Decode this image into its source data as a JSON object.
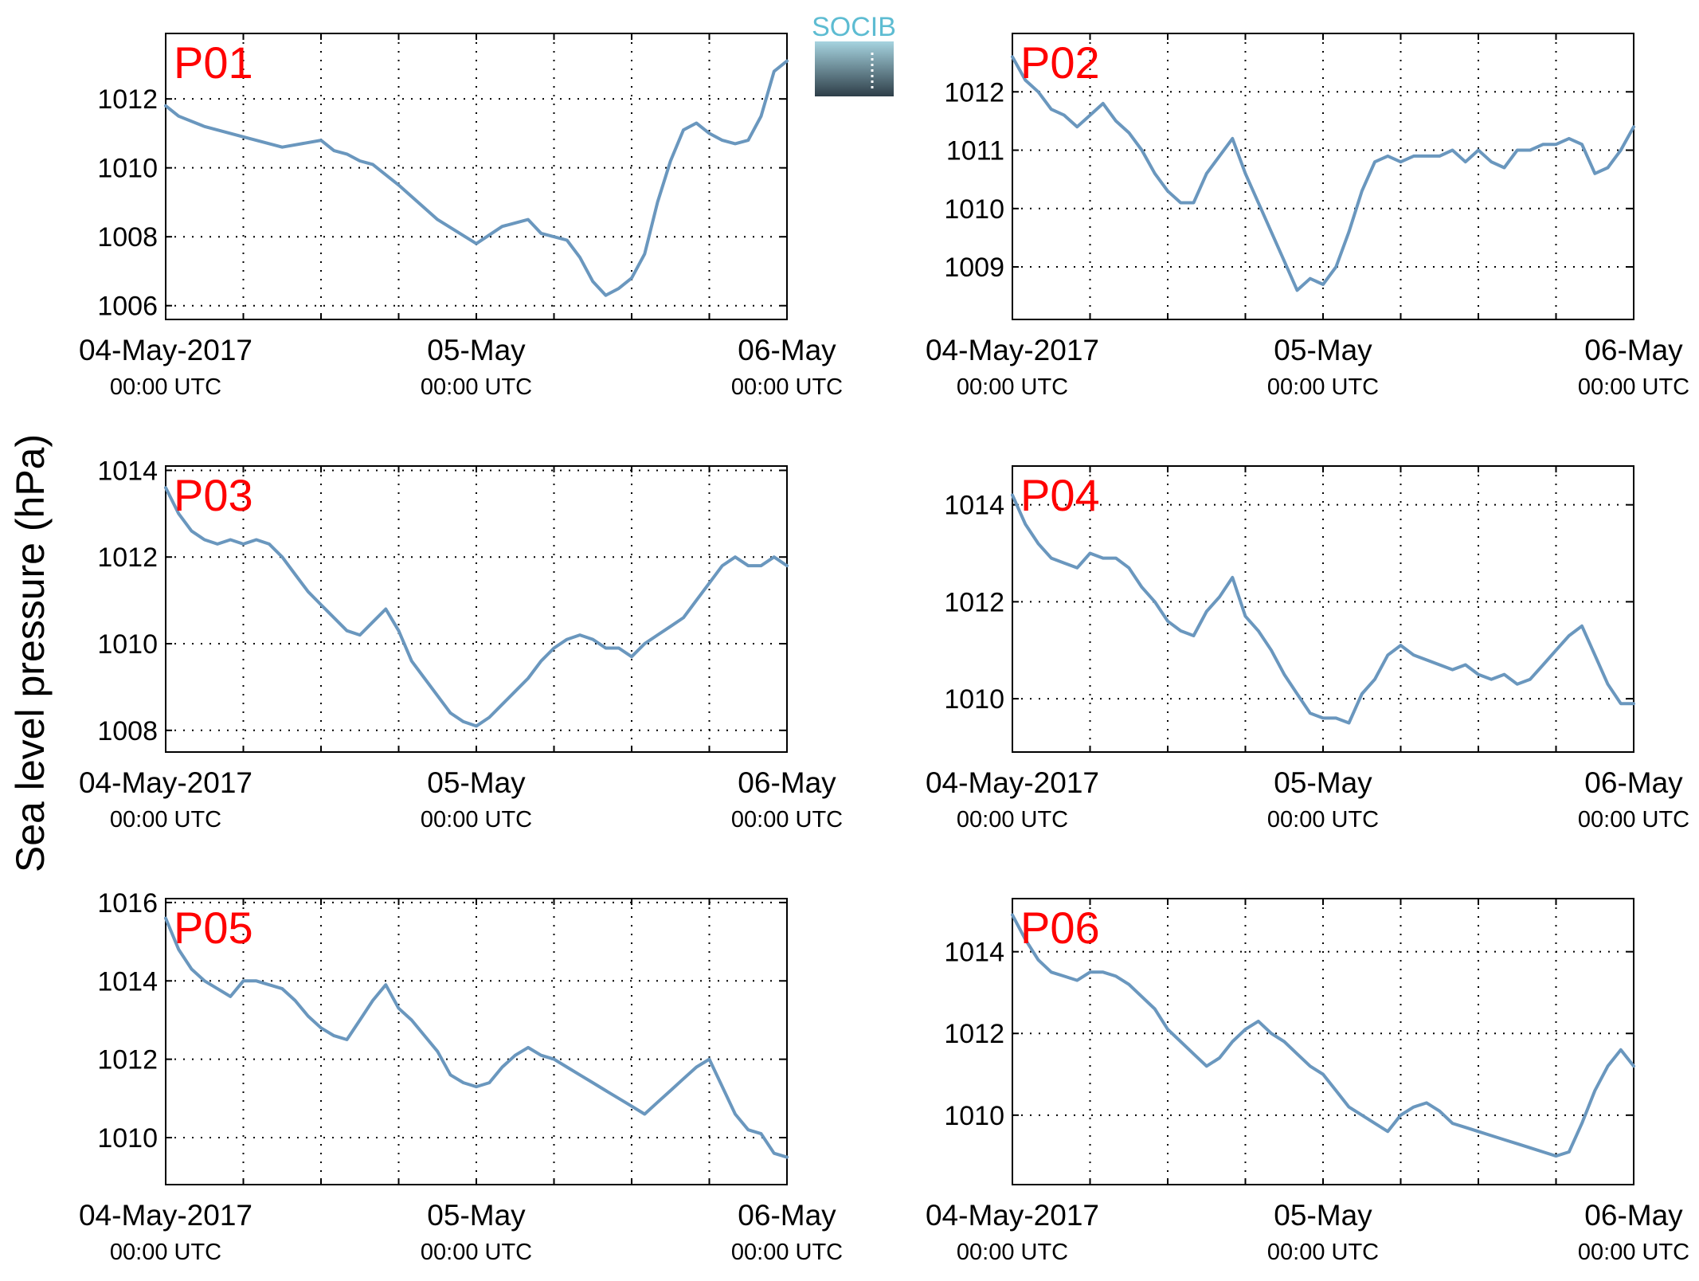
{
  "figure": {
    "ylabel": "Sea level pressure (hPa)",
    "logo_text": "SOCIB",
    "colors": {
      "line": "#6a97be",
      "panel_label": "#ff0000",
      "axis": "#000000",
      "grid": "#000000",
      "logo_top": "#a6d3df",
      "logo_bottom": "#2e3e48",
      "logo_text": "#5dbcd2"
    }
  },
  "chart_data": [
    {
      "type": "line",
      "title": "P01",
      "x_range": [
        "2017-05-04 00:00 UTC",
        "2017-05-06 00:00 UTC"
      ],
      "x_tick_labels": [
        {
          "date": "04-May-2017",
          "time": "00:00 UTC"
        },
        {
          "date": "05-May",
          "time": "00:00 UTC"
        },
        {
          "date": "06-May",
          "time": "00:00 UTC"
        }
      ],
      "grid": true,
      "ylim": [
        1005.6,
        1013.9
      ],
      "y_ticks": [
        1006,
        1008,
        1010,
        1012
      ],
      "series": [
        {
          "x_hours": [
            0,
            1,
            3,
            6,
            9,
            12,
            13,
            14,
            15,
            16,
            18,
            21,
            24,
            26,
            28,
            29,
            30,
            31,
            32,
            33,
            34,
            35,
            36,
            37,
            38,
            39,
            40,
            41,
            42,
            43,
            44,
            45,
            46,
            47,
            48
          ],
          "values": [
            1011.8,
            1011.5,
            1011.2,
            1010.9,
            1010.6,
            1010.8,
            1010.5,
            1010.4,
            1010.2,
            1010.1,
            1009.5,
            1008.5,
            1007.8,
            1008.3,
            1008.5,
            1008.1,
            1008.0,
            1007.9,
            1007.4,
            1006.7,
            1006.3,
            1006.5,
            1006.8,
            1007.5,
            1009.0,
            1010.2,
            1011.1,
            1011.3,
            1011.0,
            1010.8,
            1010.7,
            1010.8,
            1011.5,
            1012.8,
            1013.1
          ]
        }
      ]
    },
    {
      "type": "line",
      "title": "P02",
      "x_range": [
        "2017-05-04 00:00 UTC",
        "2017-05-06 00:00 UTC"
      ],
      "x_tick_labels": [
        {
          "date": "04-May-2017",
          "time": "00:00 UTC"
        },
        {
          "date": "05-May",
          "time": "00:00 UTC"
        },
        {
          "date": "06-May",
          "time": "00:00 UTC"
        }
      ],
      "grid": true,
      "ylim": [
        1008.1,
        1013.0
      ],
      "y_ticks": [
        1009,
        1010,
        1011,
        1012
      ],
      "series": [
        {
          "x_hours": [
            0,
            1,
            2,
            3,
            4,
            5,
            6,
            7,
            8,
            9,
            10,
            11,
            12,
            13,
            14,
            15,
            16,
            17,
            18,
            19,
            20,
            21,
            22,
            23,
            24,
            25,
            26,
            27,
            28,
            29,
            30,
            31,
            32,
            33,
            34,
            35,
            36,
            37,
            38,
            39,
            40,
            41,
            42,
            43,
            44,
            45,
            46,
            47,
            48
          ],
          "values": [
            1012.6,
            1012.2,
            1012.0,
            1011.7,
            1011.6,
            1011.4,
            1011.6,
            1011.8,
            1011.5,
            1011.3,
            1011.0,
            1010.6,
            1010.3,
            1010.1,
            1010.1,
            1010.6,
            1010.9,
            1011.2,
            1010.6,
            1010.1,
            1009.6,
            1009.1,
            1008.6,
            1008.8,
            1008.7,
            1009.0,
            1009.6,
            1010.3,
            1010.8,
            1010.9,
            1010.8,
            1010.9,
            1010.9,
            1010.9,
            1011.0,
            1010.8,
            1011.0,
            1010.8,
            1010.7,
            1011.0,
            1011.0,
            1011.1,
            1011.1,
            1011.2,
            1011.1,
            1010.6,
            1010.7,
            1011.0,
            1011.4
          ]
        }
      ]
    },
    {
      "type": "line",
      "title": "P03",
      "x_range": [
        "2017-05-04 00:00 UTC",
        "2017-05-06 00:00 UTC"
      ],
      "x_tick_labels": [
        {
          "date": "04-May-2017",
          "time": "00:00 UTC"
        },
        {
          "date": "05-May",
          "time": "00:00 UTC"
        },
        {
          "date": "06-May",
          "time": "00:00 UTC"
        }
      ],
      "grid": true,
      "ylim": [
        1007.5,
        1014.1
      ],
      "y_ticks": [
        1008,
        1010,
        1012,
        1014
      ],
      "series": [
        {
          "x_hours": [
            0,
            1,
            2,
            3,
            4,
            5,
            6,
            7,
            8,
            9,
            10,
            11,
            12,
            13,
            14,
            15,
            16,
            17,
            18,
            19,
            20,
            21,
            22,
            23,
            24,
            25,
            26,
            27,
            28,
            29,
            30,
            31,
            32,
            33,
            34,
            35,
            36,
            37,
            38,
            39,
            40,
            41,
            42,
            43,
            44,
            45,
            46,
            47,
            48
          ],
          "values": [
            1013.6,
            1013.0,
            1012.6,
            1012.4,
            1012.3,
            1012.4,
            1012.3,
            1012.4,
            1012.3,
            1012.0,
            1011.6,
            1011.2,
            1010.9,
            1010.6,
            1010.3,
            1010.2,
            1010.5,
            1010.8,
            1010.3,
            1009.6,
            1009.2,
            1008.8,
            1008.4,
            1008.2,
            1008.1,
            1008.3,
            1008.6,
            1008.9,
            1009.2,
            1009.6,
            1009.9,
            1010.1,
            1010.2,
            1010.1,
            1009.9,
            1009.9,
            1009.7,
            1010.0,
            1010.2,
            1010.4,
            1010.6,
            1011.0,
            1011.4,
            1011.8,
            1012.0,
            1011.8,
            1011.8,
            1012.0,
            1011.8
          ]
        }
      ]
    },
    {
      "type": "line",
      "title": "P04",
      "x_range": [
        "2017-05-04 00:00 UTC",
        "2017-05-06 00:00 UTC"
      ],
      "x_tick_labels": [
        {
          "date": "04-May-2017",
          "time": "00:00 UTC"
        },
        {
          "date": "05-May",
          "time": "00:00 UTC"
        },
        {
          "date": "06-May",
          "time": "00:00 UTC"
        }
      ],
      "grid": true,
      "ylim": [
        1008.9,
        1014.8
      ],
      "y_ticks": [
        1010,
        1012,
        1014
      ],
      "series": [
        {
          "x_hours": [
            0,
            1,
            2,
            3,
            4,
            5,
            6,
            7,
            8,
            9,
            10,
            11,
            12,
            13,
            14,
            15,
            16,
            17,
            18,
            19,
            20,
            21,
            22,
            23,
            24,
            25,
            26,
            27,
            28,
            29,
            30,
            31,
            32,
            33,
            34,
            35,
            36,
            37,
            38,
            39,
            40,
            41,
            42,
            43,
            44,
            45,
            46,
            47,
            48
          ],
          "values": [
            1014.2,
            1013.6,
            1013.2,
            1012.9,
            1012.8,
            1012.7,
            1013.0,
            1012.9,
            1012.9,
            1012.7,
            1012.3,
            1012.0,
            1011.6,
            1011.4,
            1011.3,
            1011.8,
            1012.1,
            1012.5,
            1011.7,
            1011.4,
            1011.0,
            1010.5,
            1010.1,
            1009.7,
            1009.6,
            1009.6,
            1009.5,
            1010.1,
            1010.4,
            1010.9,
            1011.1,
            1010.9,
            1010.8,
            1010.7,
            1010.6,
            1010.7,
            1010.5,
            1010.4,
            1010.5,
            1010.3,
            1010.4,
            1010.7,
            1011.0,
            1011.3,
            1011.5,
            1010.9,
            1010.3,
            1009.9,
            1009.9
          ]
        }
      ]
    },
    {
      "type": "line",
      "title": "P05",
      "x_range": [
        "2017-05-04 00:00 UTC",
        "2017-05-06 00:00 UTC"
      ],
      "x_tick_labels": [
        {
          "date": "04-May-2017",
          "time": "00:00 UTC"
        },
        {
          "date": "05-May",
          "time": "00:00 UTC"
        },
        {
          "date": "06-May",
          "time": "00:00 UTC"
        }
      ],
      "grid": true,
      "ylim": [
        1008.8,
        1016.1
      ],
      "y_ticks": [
        1010,
        1012,
        1014,
        1016
      ],
      "series": [
        {
          "x_hours": [
            0,
            1,
            2,
            3,
            4,
            5,
            6,
            7,
            8,
            9,
            10,
            11,
            12,
            13,
            14,
            15,
            16,
            17,
            18,
            19,
            20,
            21,
            22,
            23,
            24,
            25,
            26,
            27,
            28,
            29,
            30,
            31,
            32,
            33,
            34,
            35,
            36,
            37,
            38,
            39,
            40,
            41,
            42,
            43,
            44,
            45,
            46,
            47,
            48
          ],
          "values": [
            1015.6,
            1014.8,
            1014.3,
            1014.0,
            1013.8,
            1013.6,
            1014.0,
            1014.0,
            1013.9,
            1013.8,
            1013.5,
            1013.1,
            1012.8,
            1012.6,
            1012.5,
            1013.0,
            1013.5,
            1013.9,
            1013.3,
            1013.0,
            1012.6,
            1012.2,
            1011.6,
            1011.4,
            1011.3,
            1011.4,
            1011.8,
            1012.1,
            1012.3,
            1012.1,
            1012.0,
            1011.8,
            1011.6,
            1011.4,
            1011.2,
            1011.0,
            1010.8,
            1010.6,
            1010.9,
            1011.2,
            1011.5,
            1011.8,
            1012.0,
            1011.3,
            1010.6,
            1010.2,
            1010.1,
            1009.6,
            1009.5
          ]
        }
      ]
    },
    {
      "type": "line",
      "title": "P06",
      "x_range": [
        "2017-05-04 00:00 UTC",
        "2017-05-06 00:00 UTC"
      ],
      "x_tick_labels": [
        {
          "date": "04-May-2017",
          "time": "00:00 UTC"
        },
        {
          "date": "05-May",
          "time": "00:00 UTC"
        },
        {
          "date": "06-May",
          "time": "00:00 UTC"
        }
      ],
      "grid": true,
      "ylim": [
        1008.3,
        1015.3
      ],
      "y_ticks": [
        1010,
        1012,
        1014
      ],
      "series": [
        {
          "x_hours": [
            0,
            1,
            2,
            3,
            4,
            5,
            6,
            7,
            8,
            9,
            10,
            11,
            12,
            13,
            14,
            15,
            16,
            17,
            18,
            19,
            20,
            21,
            22,
            23,
            24,
            25,
            26,
            27,
            28,
            29,
            30,
            31,
            32,
            33,
            34,
            35,
            36,
            37,
            38,
            39,
            40,
            41,
            42,
            43,
            44,
            45,
            46,
            47,
            48
          ],
          "values": [
            1014.9,
            1014.3,
            1013.8,
            1013.5,
            1013.4,
            1013.3,
            1013.5,
            1013.5,
            1013.4,
            1013.2,
            1012.9,
            1012.6,
            1012.1,
            1011.8,
            1011.5,
            1011.2,
            1011.4,
            1011.8,
            1012.1,
            1012.3,
            1012.0,
            1011.8,
            1011.5,
            1011.2,
            1011.0,
            1010.6,
            1010.2,
            1010.0,
            1009.8,
            1009.6,
            1010.0,
            1010.2,
            1010.3,
            1010.1,
            1009.8,
            1009.7,
            1009.6,
            1009.5,
            1009.4,
            1009.3,
            1009.2,
            1009.1,
            1009.0,
            1009.1,
            1009.8,
            1010.6,
            1011.2,
            1011.6,
            1011.2
          ]
        }
      ]
    }
  ]
}
